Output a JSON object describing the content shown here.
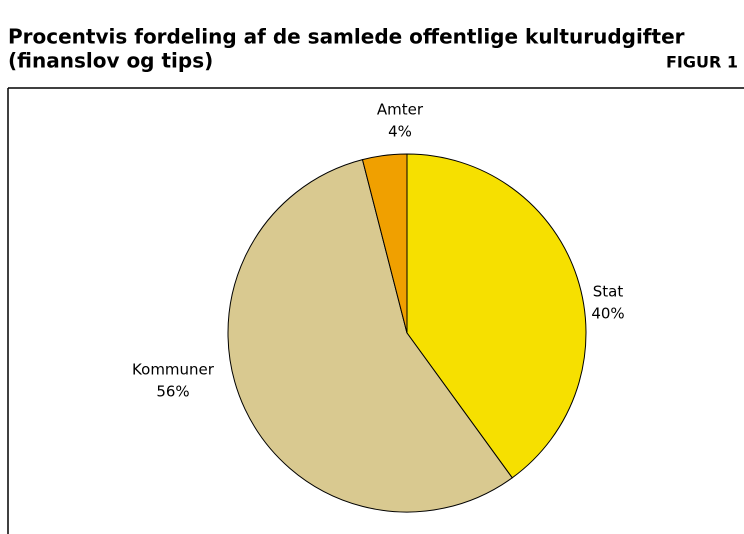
{
  "chart_data": {
    "type": "pie",
    "title": "Procentvis fordeling af de samlede offentlige kulturudgifter",
    "subtitle": "(finanslov og tips)",
    "figure_label": "FIGUR 1",
    "categories": [
      "Stat",
      "Kommuner",
      "Amter"
    ],
    "values": [
      40,
      56,
      4
    ],
    "value_labels": [
      "40%",
      "56%",
      "4%"
    ],
    "colors": [
      "#f6e000",
      "#d9c990",
      "#f0a000"
    ]
  }
}
